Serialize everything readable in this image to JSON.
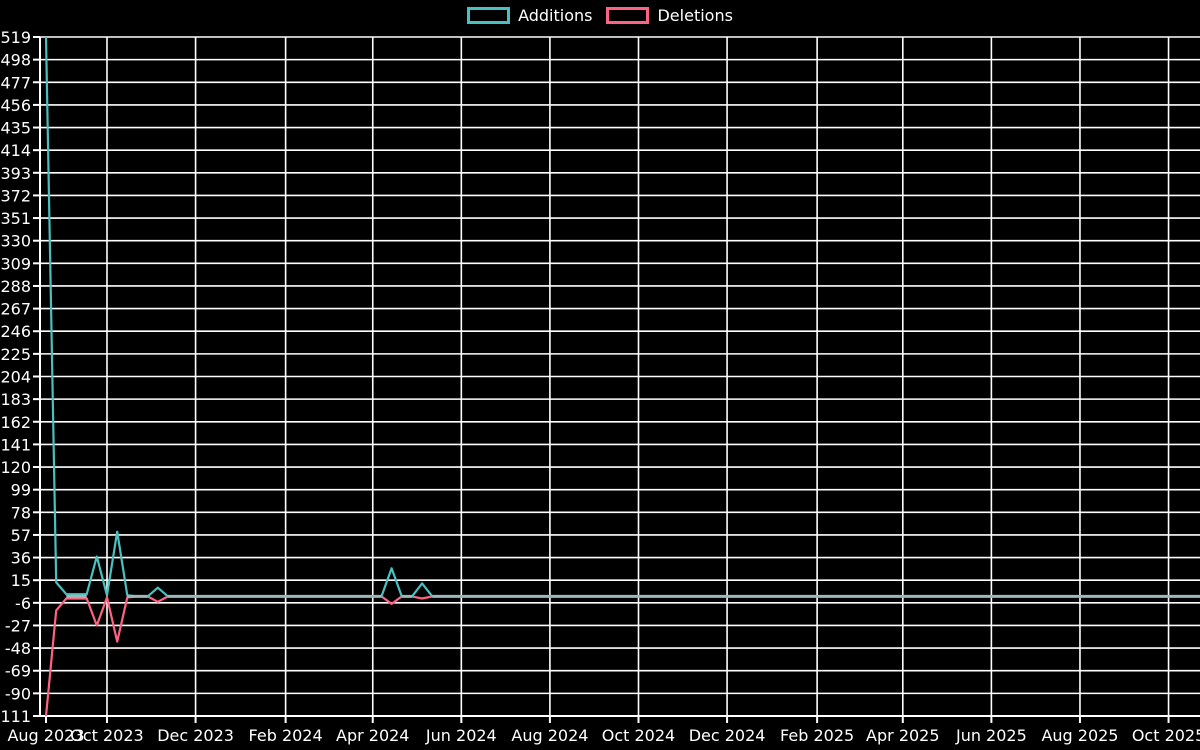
{
  "chart_data": {
    "type": "line",
    "title": "",
    "legend_labels": [
      "Additions",
      "Deletions"
    ],
    "legend_position": "top-center",
    "grid": true,
    "colors": {
      "background": "#000000",
      "grid": "#ffffff",
      "text": "#ffffff",
      "additions": "#4bc0c0",
      "deletions": "#ff6384",
      "merged_zero_line": "#9fb6bb"
    },
    "y_axis": {
      "min": -111,
      "max": 519,
      "step": 21,
      "ticks": [
        519,
        498,
        477,
        456,
        435,
        414,
        393,
        372,
        351,
        330,
        309,
        288,
        267,
        246,
        225,
        204,
        183,
        162,
        141,
        120,
        99,
        78,
        57,
        36,
        15,
        -6,
        -27,
        -48,
        -69,
        -90,
        -111
      ]
    },
    "x_axis": {
      "ticks": [
        {
          "label": "Aug 2023",
          "date": "2023-08-20",
          "grid": false
        },
        {
          "label": "Oct 2023",
          "date": "2023-10-01",
          "grid": true
        },
        {
          "label": "Dec 2023",
          "date": "2023-12-01",
          "grid": true
        },
        {
          "label": "Feb 2024",
          "date": "2024-02-01",
          "grid": true
        },
        {
          "label": "Apr 2024",
          "date": "2024-04-01",
          "grid": true
        },
        {
          "label": "Jun 2024",
          "date": "2024-06-01",
          "grid": true
        },
        {
          "label": "Aug 2024",
          "date": "2024-08-01",
          "grid": true
        },
        {
          "label": "Oct 2024",
          "date": "2024-10-01",
          "grid": true
        },
        {
          "label": "Dec 2024",
          "date": "2024-12-01",
          "grid": true
        },
        {
          "label": "Feb 2025",
          "date": "2025-02-01",
          "grid": true
        },
        {
          "label": "Apr 2025",
          "date": "2025-04-01",
          "grid": true
        },
        {
          "label": "Jun 2025",
          "date": "2025-06-01",
          "grid": true
        },
        {
          "label": "Aug 2025",
          "date": "2025-08-01",
          "grid": true
        },
        {
          "label": "Oct 2025",
          "date": "2025-10-01",
          "grid": true
        }
      ]
    },
    "series": {
      "interval": "weekly",
      "start_date": "2023-08-20",
      "weeks": 115,
      "default_value": 0,
      "nonzero_points": [
        {
          "week": 0,
          "additions": 519,
          "deletions": -111
        },
        {
          "week": 1,
          "additions": 13,
          "deletions": -13
        },
        {
          "week": 2,
          "additions": 2,
          "deletions": -2
        },
        {
          "week": 3,
          "additions": 2,
          "deletions": -2
        },
        {
          "week": 4,
          "additions": 2,
          "deletions": -2
        },
        {
          "week": 5,
          "additions": 37,
          "deletions": -27
        },
        {
          "week": 6,
          "additions": 1,
          "deletions": -1
        },
        {
          "week": 7,
          "additions": 60,
          "deletions": -42
        },
        {
          "week": 8,
          "additions": 1,
          "deletions": -1
        },
        {
          "week": 11,
          "additions": 8,
          "deletions": -5
        },
        {
          "week": 34,
          "additions": 26,
          "deletions": -7
        },
        {
          "week": 37,
          "additions": 12,
          "deletions": -2
        }
      ]
    }
  }
}
